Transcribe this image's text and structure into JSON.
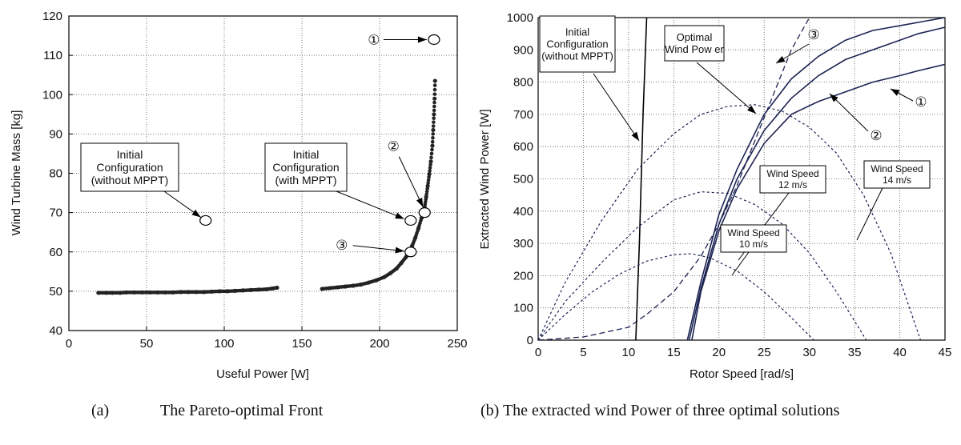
{
  "captions": {
    "a_tag": "(a)",
    "a_text": "The Pareto-optimal Front",
    "b_text": "(b) The extracted wind Power of three optimal solutions"
  },
  "chart_data": [
    {
      "type": "scatter",
      "xlabel": "Useful Power [W]",
      "ylabel": "Wind Turbine Mass [kg]",
      "xlim": [
        0,
        250
      ],
      "ylim": [
        40,
        120
      ],
      "xticks": [
        0,
        50,
        100,
        150,
        200,
        250
      ],
      "yticks": [
        40,
        50,
        60,
        70,
        80,
        90,
        100,
        110,
        120
      ],
      "grid": true,
      "series": [
        {
          "values": [
            [
              19,
              49.6
            ],
            [
              24,
              49.6
            ],
            [
              28,
              49.6
            ],
            [
              33,
              49.6
            ],
            [
              37,
              49.7
            ],
            [
              42,
              49.7
            ],
            [
              47,
              49.7
            ],
            [
              52,
              49.7
            ],
            [
              57,
              49.7
            ],
            [
              62,
              49.7
            ],
            [
              67,
              49.7
            ],
            [
              72,
              49.8
            ],
            [
              77,
              49.8
            ],
            [
              82,
              49.8
            ],
            [
              87,
              49.8
            ],
            [
              92,
              49.9
            ],
            [
              97,
              50.0
            ],
            [
              102,
              50.0
            ],
            [
              107,
              50.1
            ],
            [
              112,
              50.2
            ],
            [
              117,
              50.3
            ],
            [
              122,
              50.4
            ],
            [
              127,
              50.5
            ],
            [
              131,
              50.7
            ],
            [
              134,
              50.9
            ],
            [
              163,
              50.6
            ],
            [
              168,
              50.8
            ],
            [
              173,
              51.0
            ],
            [
              178,
              51.2
            ],
            [
              183,
              51.4
            ],
            [
              188,
              51.7
            ],
            [
              193,
              52.2
            ],
            [
              198,
              52.8
            ],
            [
              203,
              53.6
            ],
            [
              207,
              54.6
            ],
            [
              211,
              55.8
            ],
            [
              214,
              57.2
            ],
            [
              217,
              58.7
            ],
            [
              219,
              60.0
            ],
            [
              221,
              61.6
            ],
            [
              223,
              63.6
            ],
            [
              225,
              66.0
            ],
            [
              227,
              68.6
            ],
            [
              229,
              71.4
            ],
            [
              230,
              74.0
            ],
            [
              231,
              76.8
            ],
            [
              232,
              79.8
            ],
            [
              233,
              83.0
            ],
            [
              234,
              87.0
            ],
            [
              234.5,
              91.0
            ],
            [
              235,
              95.0
            ],
            [
              235.4,
              99.0
            ],
            [
              235.7,
              103.5
            ]
          ]
        }
      ],
      "highlighted_points": [
        {
          "marker": "①",
          "x": 235,
          "y": 114
        },
        {
          "marker": "②",
          "x": 229,
          "y": 70
        },
        {
          "marker": "③",
          "x": 220,
          "y": 60
        },
        {
          "x": 220,
          "y": 68
        },
        {
          "x": 88,
          "y": 68
        }
      ],
      "annotations": [
        {
          "lines": [
            "Initial",
            "Configuration",
            "(without MPPT)"
          ],
          "points_to": [
            88,
            68
          ]
        },
        {
          "lines": [
            "Initial",
            "Configuration",
            "(with MPPT)"
          ],
          "points_to": [
            220,
            68
          ]
        }
      ]
    },
    {
      "type": "line",
      "xlabel": "Rotor Speed [rad/s]",
      "ylabel": "Extracted Wind Power [W]",
      "xlim": [
        0,
        45
      ],
      "ylim": [
        0,
        1000
      ],
      "xticks": [
        0,
        5,
        10,
        15,
        20,
        25,
        30,
        35,
        40,
        45
      ],
      "yticks": [
        0,
        100,
        200,
        300,
        400,
        500,
        600,
        700,
        800,
        900,
        1000
      ],
      "grid": true,
      "series": [
        {
          "label": "①",
          "style": "solid",
          "x": [
            17.0,
            18,
            20,
            22,
            25,
            28,
            31,
            34,
            37,
            40,
            42,
            45
          ],
          "y": [
            0,
            150,
            340,
            470,
            610,
            700,
            740,
            770,
            800,
            820,
            835,
            855
          ]
        },
        {
          "label": "②",
          "style": "solid",
          "x": [
            16.7,
            18,
            20,
            22,
            25,
            28,
            31,
            34,
            37,
            40,
            42,
            45
          ],
          "y": [
            0,
            160,
            360,
            500,
            650,
            750,
            820,
            870,
            900,
            930,
            950,
            970
          ]
        },
        {
          "label": "③",
          "style": "solid",
          "x": [
            16.5,
            18,
            20,
            22,
            25,
            28,
            31,
            34,
            37,
            40,
            42,
            45
          ],
          "y": [
            0,
            180,
            390,
            530,
            700,
            810,
            880,
            930,
            960,
            975,
            985,
            1000
          ]
        },
        {
          "label": "Optimal Wind Power",
          "style": "dashed",
          "x": [
            0,
            5,
            10,
            12,
            15,
            18,
            20,
            22,
            24,
            26,
            28,
            30
          ],
          "y": [
            0,
            10,
            40,
            80,
            150,
            260,
            360,
            480,
            620,
            760,
            900,
            1000
          ]
        },
        {
          "label": "Initial Configuration (without MPPT)",
          "style": "solid",
          "x": [
            10.8,
            11.2,
            11.6,
            12.0
          ],
          "y": [
            0,
            300,
            700,
            1000
          ]
        },
        {
          "label": "Wind Speed 10 m/s",
          "style": "dotted",
          "x": [
            0,
            3,
            6,
            9,
            12,
            15,
            17,
            19,
            22,
            25,
            28,
            30.5
          ],
          "y": [
            0,
            80,
            150,
            205,
            245,
            265,
            268,
            255,
            215,
            150,
            70,
            0
          ]
        },
        {
          "label": "Wind Speed 12 m/s",
          "style": "dotted",
          "x": [
            0,
            3,
            7,
            11,
            15,
            18,
            21,
            24,
            27,
            30,
            33,
            36.3
          ],
          "y": [
            0,
            120,
            240,
            350,
            435,
            460,
            455,
            420,
            360,
            270,
            150,
            0
          ]
        },
        {
          "label": "Wind Speed 14 m/s",
          "style": "dotted",
          "x": [
            0,
            3,
            7,
            11,
            15,
            18,
            21,
            24,
            27,
            30,
            33,
            36,
            39,
            42.3
          ],
          "y": [
            0,
            180,
            370,
            530,
            640,
            700,
            725,
            730,
            710,
            660,
            580,
            450,
            270,
            0
          ]
        }
      ],
      "labels": {
        "optimal": [
          "Optimal",
          "Wind Pow er"
        ],
        "initial": [
          "Initial",
          "Configuration",
          "(without MPPT)"
        ],
        "ws12": [
          "Wind Speed",
          "12 m/s"
        ],
        "ws14": [
          "Wind Speed",
          "14 m/s"
        ],
        "ws10": [
          "Wind Speed",
          "10 m/s"
        ],
        "m1": "①",
        "m2": "②",
        "m3": "③"
      }
    }
  ]
}
